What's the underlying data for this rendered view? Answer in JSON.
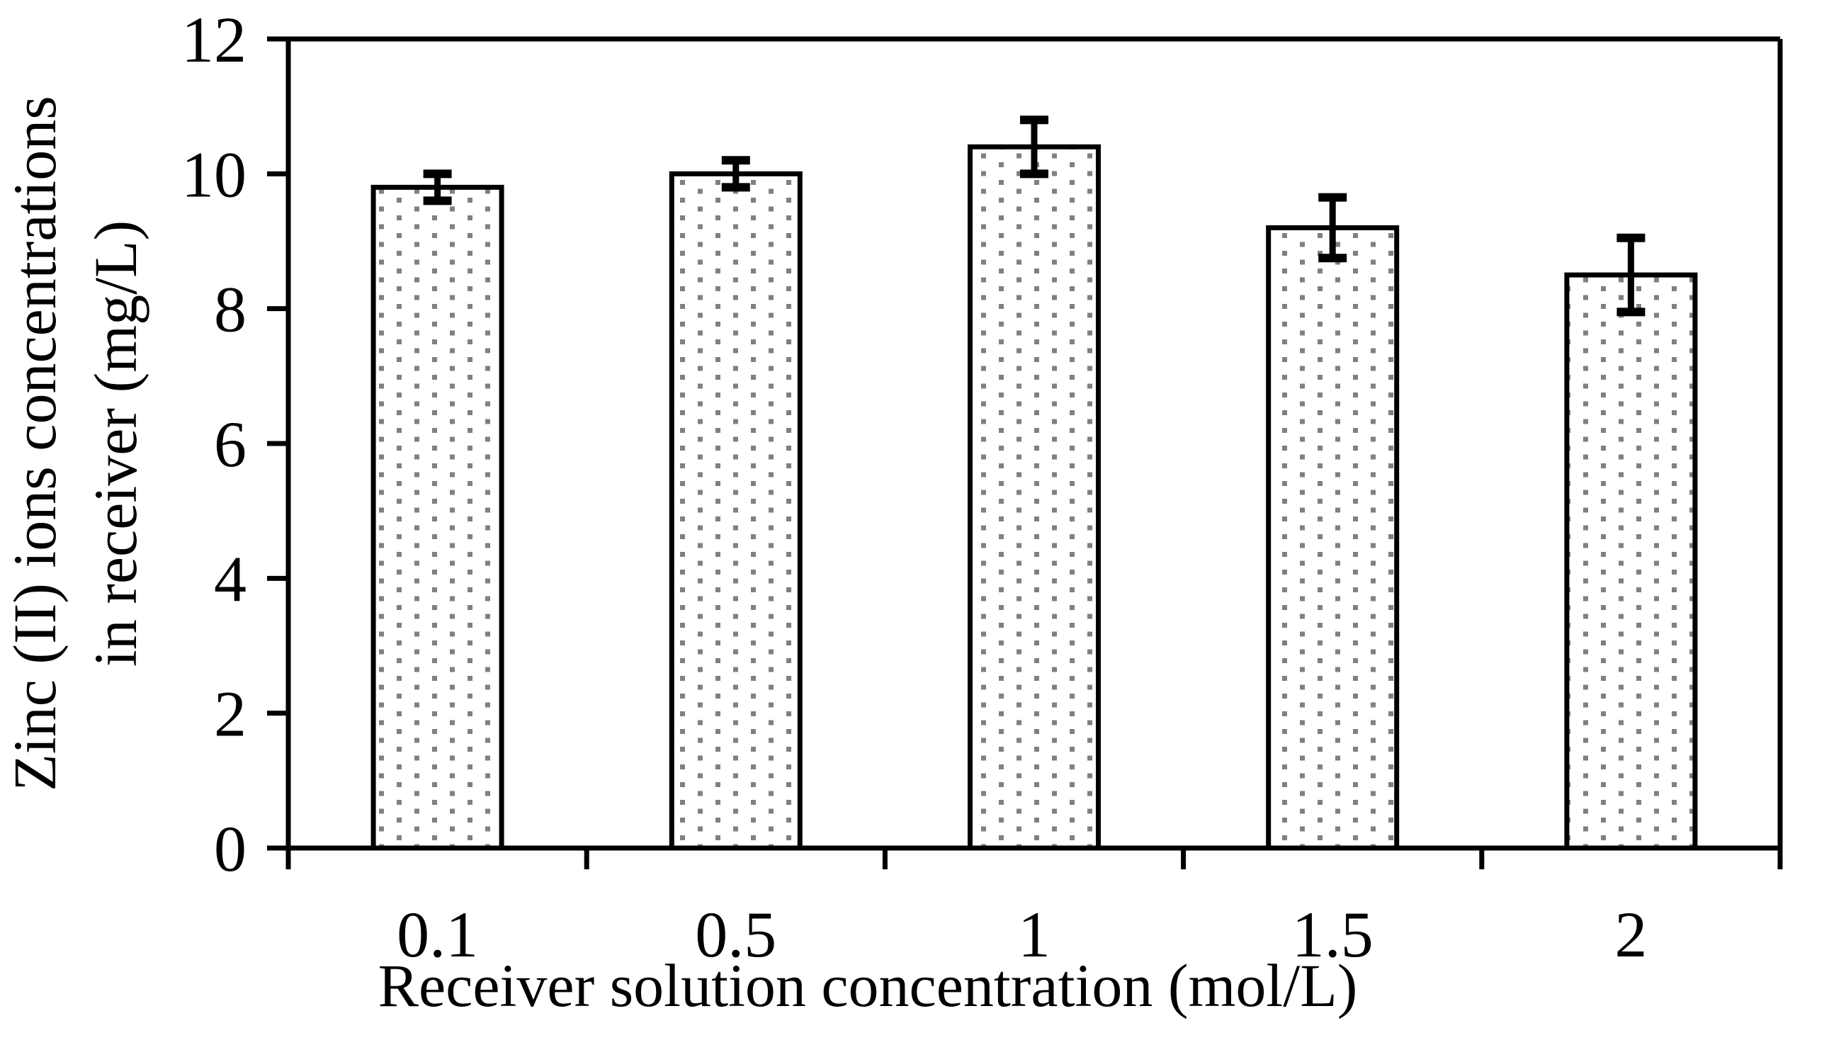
{
  "chart_data": {
    "type": "bar",
    "title": "",
    "categories": [
      "0.1",
      "0.5",
      "1",
      "1.5",
      "2"
    ],
    "values": [
      9.8,
      10.0,
      10.4,
      9.2,
      8.5
    ],
    "error_bars": [
      0.2,
      0.2,
      0.4,
      0.45,
      0.55
    ],
    "xlabel": "Receiver solution concentration (mol/L)",
    "ylabel_line1": "Zinc (II) ions concentrations",
    "ylabel_line2": "in receiver (mg/L)",
    "ylim": [
      0,
      12
    ],
    "yticks": [
      0,
      2,
      4,
      6,
      8,
      10,
      12
    ],
    "xtick_labels": [
      "0.1",
      "0.5",
      "1",
      "1.5",
      "2"
    ],
    "grid": false,
    "legend": false,
    "frame": "full-box",
    "bar_fill_style": "dotted-pattern",
    "dot_color": "#808080",
    "line_color": "#000000",
    "background_color": "#ffffff"
  }
}
